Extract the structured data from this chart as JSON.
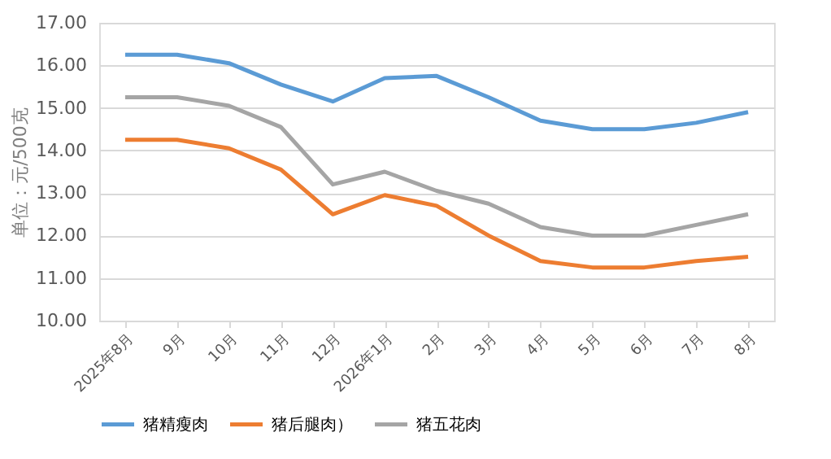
{
  "chart_data": {
    "type": "line",
    "ylabel": "单位：元/500克",
    "categories": [
      "2025年8月",
      "9月",
      "10月",
      "11月",
      "12月",
      "2026年1月",
      "2月",
      "3月",
      "4月",
      "5月",
      "6月",
      "7月",
      "8月"
    ],
    "series": [
      {
        "name": "猪精瘦肉",
        "color": "#5b9bd5",
        "values": [
          16.25,
          16.25,
          16.05,
          15.55,
          15.15,
          15.7,
          15.75,
          15.25,
          14.7,
          14.5,
          14.5,
          14.65,
          14.9
        ]
      },
      {
        "name": "猪后腿肉）",
        "color": "#ed7d31",
        "values": [
          14.25,
          14.25,
          14.05,
          13.55,
          12.5,
          12.95,
          12.7,
          12.0,
          11.4,
          11.25,
          11.25,
          11.4,
          11.5
        ]
      },
      {
        "name": "猪五花肉",
        "color": "#a5a5a5",
        "values": [
          15.25,
          15.25,
          15.05,
          14.55,
          13.2,
          13.5,
          13.05,
          12.75,
          12.2,
          12.0,
          12.0,
          12.25,
          12.5
        ]
      }
    ],
    "ylim": [
      10,
      17
    ],
    "yticks": [
      {
        "value": 10,
        "label": "10.00"
      },
      {
        "value": 11,
        "label": "11.00"
      },
      {
        "value": 12,
        "label": "12.00"
      },
      {
        "value": 13,
        "label": "13.00"
      },
      {
        "value": 14,
        "label": "14.00"
      },
      {
        "value": 15,
        "label": "15.00"
      },
      {
        "value": 16,
        "label": "16.00"
      },
      {
        "value": 17,
        "label": "17.00"
      }
    ],
    "grid": "y",
    "legend": "bottom",
    "marker": "none",
    "line_style": "solid"
  }
}
